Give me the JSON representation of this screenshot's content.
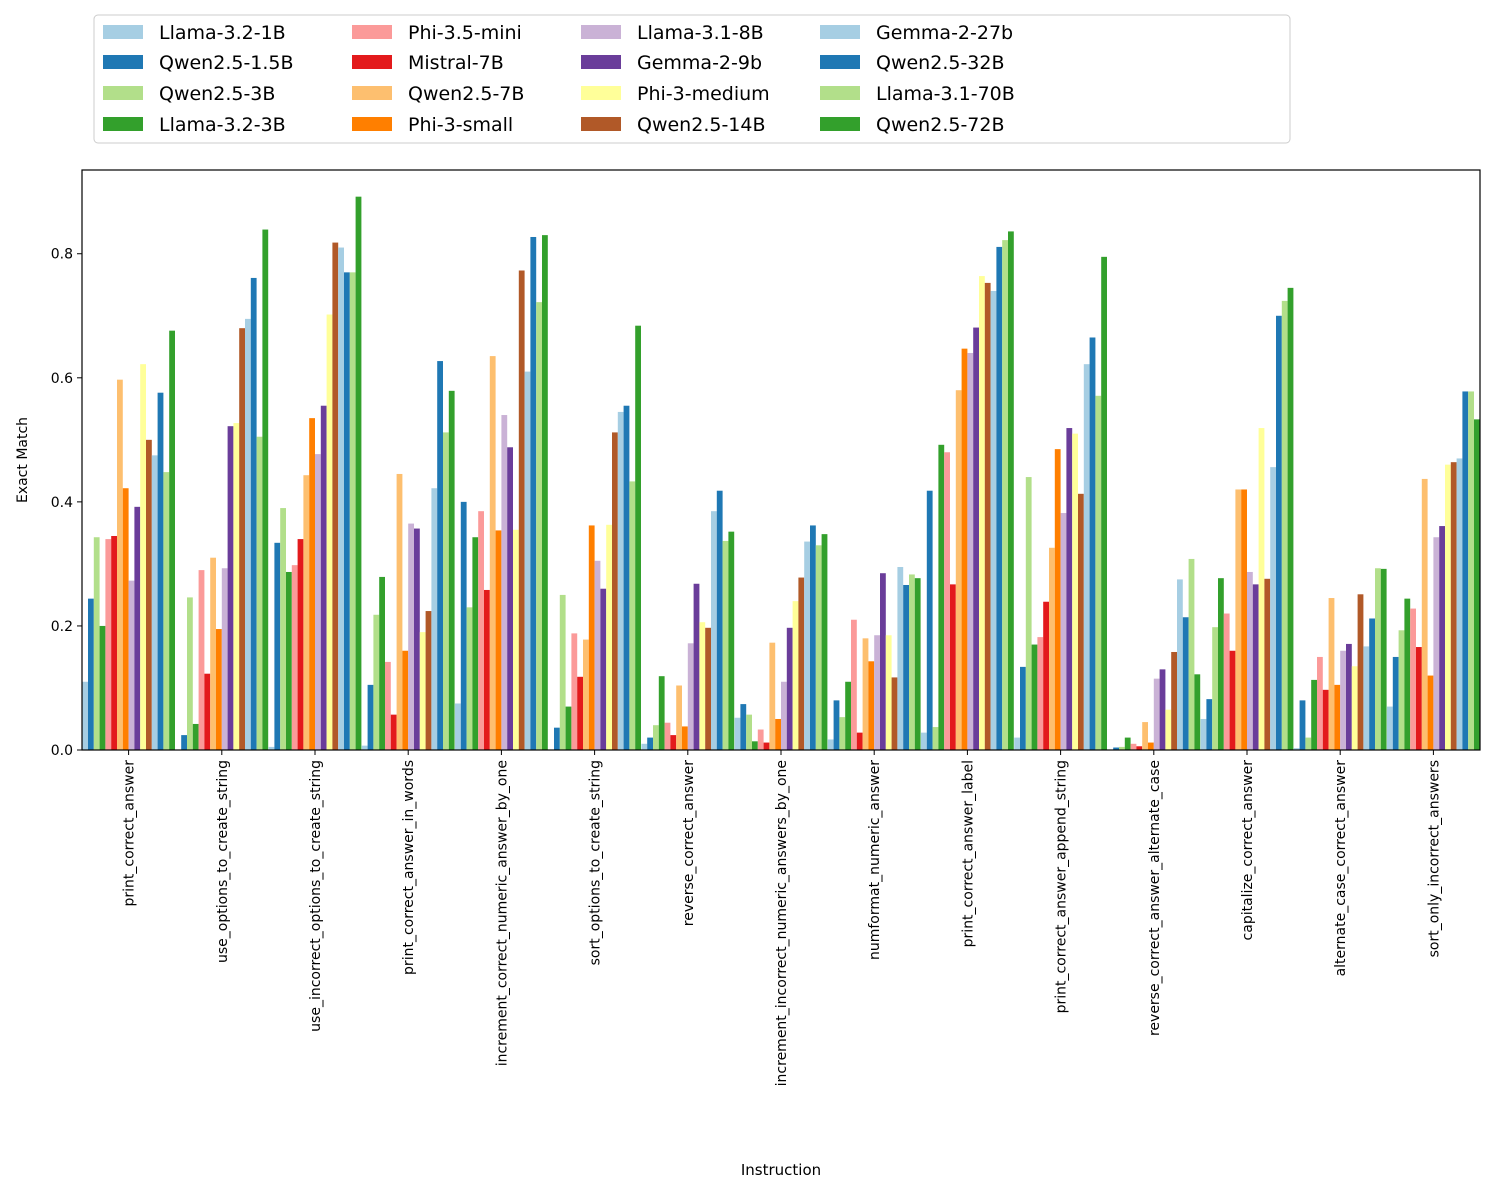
{
  "chart_data": {
    "type": "bar",
    "title": "",
    "xlabel": "Instruction",
    "ylabel": "Exact Match",
    "ylim": [
      0,
      0.935
    ],
    "yticks": [
      "0.0",
      "0.2",
      "0.4",
      "0.6",
      "0.8"
    ],
    "legend_position": "top",
    "categories": [
      "print_correct_answer",
      "use_options_to_create_string",
      "use_incorrect_options_to_create_string",
      "print_correct_answer_in_words",
      "increment_correct_numeric_answer_by_one",
      "sort_options_to_create_string",
      "reverse_correct_answer",
      "increment_incorrect_numeric_answers_by_one",
      "numformat_numeric_answer",
      "print_correct_answer_label",
      "print_correct_answer_append_string",
      "reverse_correct_answer_alternate_case",
      "capitalize_correct_answer",
      "alternate_case_correct_answer",
      "sort_only_incorrect_answers"
    ],
    "series": [
      {
        "name": "Llama-3.2-1B",
        "color": "#a6cee3",
        "values": [
          0.11,
          0.0,
          0.005,
          0.007,
          0.075,
          0.0,
          0.01,
          0.052,
          0.017,
          0.028,
          0.02,
          0.0,
          0.05,
          0.003,
          0.07
        ]
      },
      {
        "name": "Qwen2.5-1.5B",
        "color": "#1f78b4",
        "values": [
          0.244,
          0.024,
          0.334,
          0.105,
          0.4,
          0.036,
          0.02,
          0.074,
          0.08,
          0.418,
          0.134,
          0.004,
          0.082,
          0.08,
          0.15
        ]
      },
      {
        "name": "Qwen2.5-3B",
        "color": "#b2df8a",
        "values": [
          0.343,
          0.246,
          0.39,
          0.218,
          0.23,
          0.25,
          0.04,
          0.057,
          0.053,
          0.037,
          0.44,
          0.005,
          0.198,
          0.02,
          0.193
        ]
      },
      {
        "name": "Llama-3.2-3B",
        "color": "#33a02c",
        "values": [
          0.2,
          0.042,
          0.287,
          0.279,
          0.343,
          0.07,
          0.119,
          0.014,
          0.11,
          0.492,
          0.17,
          0.02,
          0.277,
          0.113,
          0.244
        ]
      },
      {
        "name": "Phi-3.5-mini",
        "color": "#fb9a99",
        "values": [
          0.34,
          0.29,
          0.298,
          0.142,
          0.385,
          0.188,
          0.044,
          0.033,
          0.21,
          0.48,
          0.182,
          0.01,
          0.22,
          0.15,
          0.228
        ]
      },
      {
        "name": "Mistral-7B",
        "color": "#e31a1c",
        "values": [
          0.345,
          0.123,
          0.34,
          0.057,
          0.258,
          0.118,
          0.024,
          0.012,
          0.028,
          0.267,
          0.239,
          0.006,
          0.16,
          0.097,
          0.166
        ]
      },
      {
        "name": "Qwen2.5-7B",
        "color": "#fdbf6f",
        "values": [
          0.597,
          0.31,
          0.443,
          0.445,
          0.635,
          0.178,
          0.104,
          0.173,
          0.18,
          0.58,
          0.326,
          0.045,
          0.42,
          0.245,
          0.437
        ]
      },
      {
        "name": "Phi-3-small",
        "color": "#ff7f00",
        "values": [
          0.422,
          0.195,
          0.535,
          0.16,
          0.354,
          0.362,
          0.038,
          0.05,
          0.143,
          0.647,
          0.485,
          0.012,
          0.42,
          0.105,
          0.12
        ]
      },
      {
        "name": "Llama-3.1-8B",
        "color": "#cab2d6",
        "values": [
          0.273,
          0.293,
          0.477,
          0.365,
          0.54,
          0.305,
          0.172,
          0.11,
          0.185,
          0.64,
          0.382,
          0.115,
          0.287,
          0.16,
          0.343
        ]
      },
      {
        "name": "Gemma-2-9b",
        "color": "#6a3d9a",
        "values": [
          0.392,
          0.522,
          0.555,
          0.357,
          0.488,
          0.26,
          0.268,
          0.197,
          0.285,
          0.681,
          0.519,
          0.13,
          0.267,
          0.171,
          0.361
        ]
      },
      {
        "name": "Phi-3-medium",
        "color": "#ffff99",
        "values": [
          0.622,
          0.527,
          0.702,
          0.19,
          0.355,
          0.363,
          0.206,
          0.24,
          0.185,
          0.764,
          0.51,
          0.065,
          0.519,
          0.135,
          0.46
        ]
      },
      {
        "name": "Qwen2.5-14B",
        "color": "#b15928",
        "values": [
          0.5,
          0.68,
          0.818,
          0.224,
          0.773,
          0.512,
          0.197,
          0.278,
          0.117,
          0.753,
          0.413,
          0.158,
          0.276,
          0.251,
          0.464
        ]
      },
      {
        "name": "Gemma-2-27b",
        "color": "#a6cee3",
        "values": [
          0.475,
          0.695,
          0.81,
          0.422,
          0.61,
          0.545,
          0.385,
          0.336,
          0.295,
          0.74,
          0.622,
          0.275,
          0.456,
          0.167,
          0.47
        ]
      },
      {
        "name": "Qwen2.5-32B",
        "color": "#1f78b4",
        "values": [
          0.576,
          0.761,
          0.77,
          0.627,
          0.827,
          0.555,
          0.418,
          0.362,
          0.266,
          0.811,
          0.665,
          0.214,
          0.7,
          0.212,
          0.578
        ]
      },
      {
        "name": "Llama-3.1-70B",
        "color": "#b2df8a",
        "values": [
          0.448,
          0.505,
          0.77,
          0.512,
          0.722,
          0.433,
          0.337,
          0.33,
          0.283,
          0.822,
          0.571,
          0.308,
          0.724,
          0.293,
          0.578
        ]
      },
      {
        "name": "Qwen2.5-72B",
        "color": "#33a02c",
        "values": [
          0.676,
          0.839,
          0.892,
          0.579,
          0.83,
          0.684,
          0.352,
          0.348,
          0.277,
          0.836,
          0.795,
          0.122,
          0.745,
          0.292,
          0.533
        ]
      }
    ]
  }
}
